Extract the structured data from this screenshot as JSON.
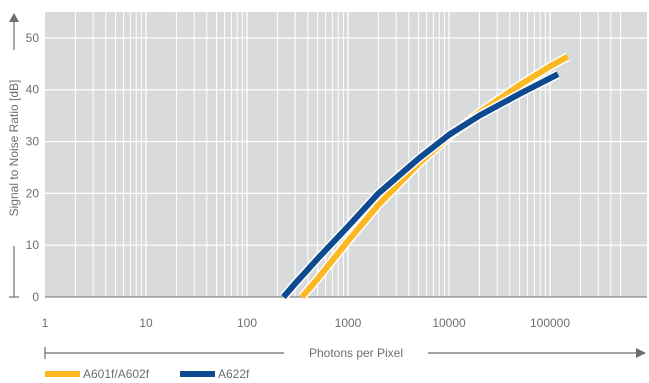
{
  "chart_data": {
    "type": "line",
    "xlabel": "Photons per Pixel",
    "ylabel": "Signal to Noise Ratio [dB]",
    "x_scale": "log",
    "xlim": [
      1,
      500000
    ],
    "ylim": [
      0,
      55
    ],
    "x_ticks": [
      1,
      10,
      100,
      1000,
      10000,
      100000
    ],
    "x_tick_labels": [
      "1",
      "10",
      "100",
      "1000",
      "10000",
      "100000"
    ],
    "y_ticks": [
      0,
      10,
      20,
      30,
      40,
      50
    ],
    "y_tick_labels": [
      "0",
      "10",
      "20",
      "30",
      "40",
      "50"
    ],
    "grid": true,
    "legend": "bottom-left",
    "colors": {
      "plot_background": "#d9dadb",
      "gridline": "#ffffff",
      "axis": "#6d6e71"
    },
    "series": [
      {
        "name": "A601f/A602f",
        "color": "#fbb822",
        "x": [
          350,
          500,
          1000,
          2000,
          5000,
          10000,
          20000,
          50000,
          100000,
          150000
        ],
        "y": [
          0,
          3.5,
          10.8,
          17.8,
          25.7,
          30.9,
          35.6,
          40.9,
          44.5,
          46.4
        ]
      },
      {
        "name": "A622f",
        "color": "#0d4a8f",
        "x": [
          230,
          300,
          500,
          1000,
          2000,
          5000,
          10000,
          20000,
          50000,
          120000
        ],
        "y": [
          0,
          2.6,
          7.4,
          13.6,
          20.0,
          26.7,
          31.3,
          35.0,
          39.2,
          43.0
        ]
      }
    ]
  }
}
